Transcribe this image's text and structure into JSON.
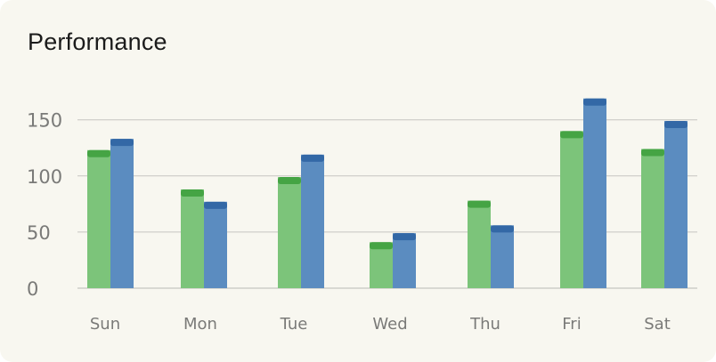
{
  "chart_data": {
    "type": "bar",
    "title": "Performance",
    "categories": [
      "Sun",
      "Mon",
      "Tue",
      "Wed",
      "Thu",
      "Fri",
      "Sat"
    ],
    "series": [
      {
        "values": [
          123,
          88,
          99,
          41,
          78,
          140,
          124
        ],
        "color": "#7cc47a",
        "cap_color": "#45a444"
      },
      {
        "values": [
          133,
          77,
          119,
          49,
          56,
          169,
          149
        ],
        "color": "#5b8cc0",
        "cap_color": "#3368a6"
      }
    ],
    "y_ticks": [
      0,
      50,
      100,
      150
    ],
    "ylim": [
      0,
      180
    ],
    "grid": true,
    "legend": "none"
  }
}
